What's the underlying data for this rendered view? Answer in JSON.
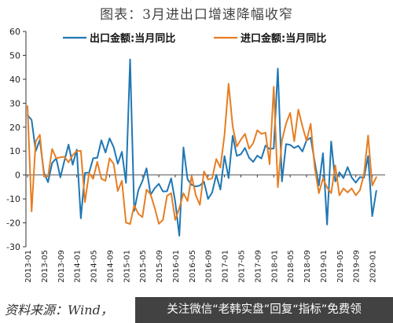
{
  "title": "图表：3月进出口增速降幅收窄",
  "source": "资料来源：Wind，",
  "watermark": "关注微信“老韩实盘”回复“指标”免费领",
  "colors": {
    "export": "#1f77b4",
    "import": "#e67e22",
    "axis": "#333333",
    "zero": "#555555"
  },
  "chart_data": {
    "type": "line",
    "ylim": [
      -30,
      60
    ],
    "yticks": [
      -30,
      -20,
      -10,
      0,
      10,
      20,
      30,
      40,
      50,
      60
    ],
    "x_start": "2013-01",
    "x_end": "2020-03",
    "xticks": [
      "2013-01",
      "2013-05",
      "2013-09",
      "2014-01",
      "2014-05",
      "2014-09",
      "2015-01",
      "2015-05",
      "2015-09",
      "2016-01",
      "2016-05",
      "2016-09",
      "2017-01",
      "2017-05",
      "2017-09",
      "2018-01",
      "2018-05",
      "2018-09",
      "2019-01",
      "2019-05",
      "2019-09",
      "2020-01"
    ],
    "legend_position": "top",
    "series": [
      {
        "name": "出口金额:当月同比",
        "color": "#1f77b4",
        "values": [
          25,
          23,
          10,
          14.7,
          1,
          -3,
          5,
          7,
          -1,
          6,
          12.7,
          4.3,
          10.6,
          -18.1,
          0.9,
          0.9,
          7,
          7.2,
          14.5,
          9.4,
          15.3,
          11.6,
          4.7,
          9.7,
          -3.3,
          48.3,
          -15,
          -6.4,
          -2.5,
          2.8,
          -8.3,
          -5.5,
          -3.7,
          -6.9,
          -6.8,
          -1.4,
          -11.2,
          -25.4,
          11.5,
          -1.8,
          -4.1,
          -4.8,
          -4.4,
          -2.8,
          -10,
          -7.3,
          0.1,
          -6.1,
          7.9,
          -1.3,
          16.4,
          8,
          8.7,
          11.3,
          7.2,
          5.5,
          8.1,
          6.9,
          12.3,
          10.9,
          11.1,
          44.5,
          -2.7,
          12.9,
          12.6,
          11.3,
          12.2,
          9.8,
          14.5,
          15.6,
          5.4,
          -4.4,
          9.1,
          -20.7,
          14,
          -2.7,
          1.1,
          -1.3,
          3.3,
          -1,
          -3.2,
          -0.9,
          -1.1,
          7.9,
          -17.2,
          -6.6
        ]
      },
      {
        "name": "进口金额:当月同比",
        "color": "#e67e22",
        "values": [
          28.8,
          -15.2,
          14.1,
          16.8,
          -0.3,
          -0.7,
          10.9,
          7,
          7.4,
          7.6,
          5.3,
          8.3,
          10,
          10.1,
          -11.3,
          0.8,
          -1.6,
          5.5,
          -1.6,
          -2.4,
          7,
          4.6,
          -6.7,
          -2.4,
          -19.9,
          -20.5,
          -12.7,
          -16.2,
          -17.6,
          -6.1,
          -8.1,
          -13.8,
          -20.4,
          -18.8,
          -8.7,
          -7.6,
          -18.8,
          -13.8,
          -7.6,
          -10.9,
          -0.4,
          -8.4,
          -12.5,
          1.5,
          -1.9,
          -1.4,
          6.7,
          3.1,
          16.7,
          38.1,
          20.3,
          11.9,
          14.8,
          17.2,
          11,
          13.3,
          18.7,
          17.2,
          17.7,
          4.5,
          36.9,
          -5.1,
          14.4,
          21.5,
          26,
          14.1,
          27.3,
          20.3,
          14.3,
          21.4,
          3,
          -7.6,
          -1.5,
          -5.2,
          -7.6,
          4,
          -8.5,
          -5.6,
          -7.3,
          -5.6,
          -8.5,
          -6.4,
          0.3,
          16.5,
          -4.4,
          -0.9
        ]
      }
    ]
  }
}
